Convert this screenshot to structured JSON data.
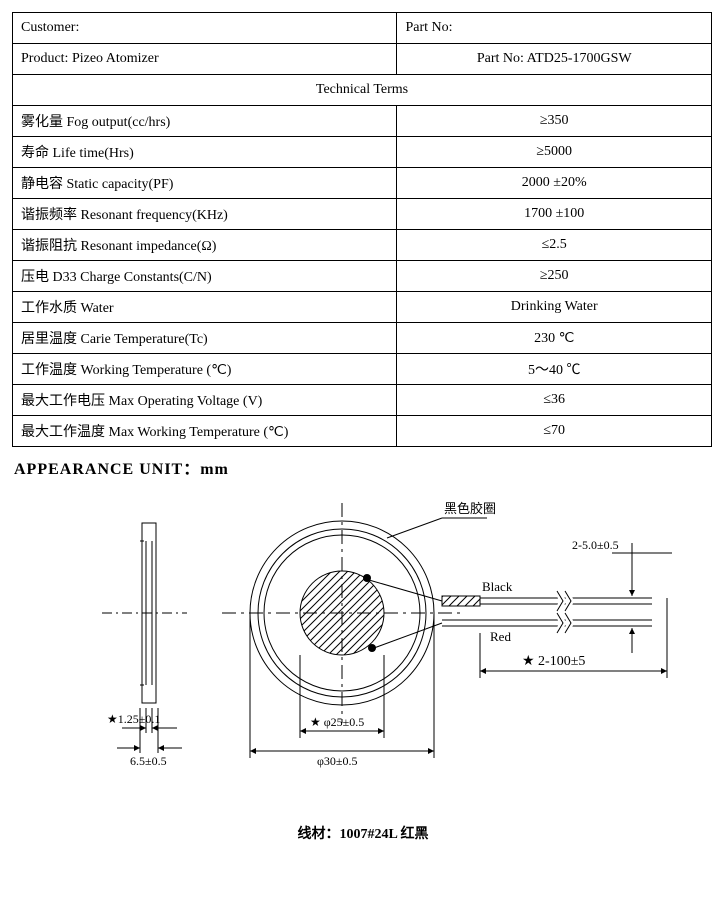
{
  "header": {
    "customer_label": "Customer:",
    "partno_label": "Part No:",
    "product_label": "Product: Pizeo Atomizer",
    "partno_value": "Part No: ATD25-1700GSW",
    "tech_terms": "Technical Terms"
  },
  "specs": [
    {
      "label": "雾化量  Fog output(cc/hrs)",
      "value": "≥350"
    },
    {
      "label": "寿命  Life time(Hrs)",
      "value": "≥5000"
    },
    {
      "label": "静电容  Static capacity(PF)",
      "value": "2000 ±20%"
    },
    {
      "label": "谐振频率  Resonant frequency(KHz)",
      "value": "1700 ±100"
    },
    {
      "label": "谐振阻抗  Resonant impedance(Ω)",
      "value": "≤2.5"
    },
    {
      "label": "压电  D33 Charge Constants(C/N)",
      "value": "≥250"
    },
    {
      "label": "工作水质  Water",
      "value": "Drinking Water"
    },
    {
      "label": "居里温度  Carie Temperature(Tc)",
      "value": "230 ℃"
    },
    {
      "label": "工作温度  Working Temperature (℃)",
      "value": "5～40 ℃"
    },
    {
      "label": "最大工作电压  Max Operating Voltage (V)",
      "value": "≤36"
    },
    {
      "label": "最大工作温度  Max Working Temperature (℃)",
      "value": "≤70"
    }
  ],
  "appearance_title": "APPEARANCE    UNIT：mm",
  "drawing": {
    "ring_label": "黑色胶圈",
    "wire_black": "Black",
    "wire_red": "Red",
    "dim_wire_w": "2-5.0±0.5",
    "dim_wire_len": "★ 2-100±5",
    "dim_thick": "★1.25±0.1",
    "dim_total_thick": "6.5±0.5",
    "dim_inner": "★ φ25±0.5",
    "dim_outer": "φ30±0.5",
    "colors": {
      "line": "#000000",
      "centerline": "#000000",
      "hatch": "#000000"
    }
  },
  "wire_note": "线材：1007#24L 红黑"
}
